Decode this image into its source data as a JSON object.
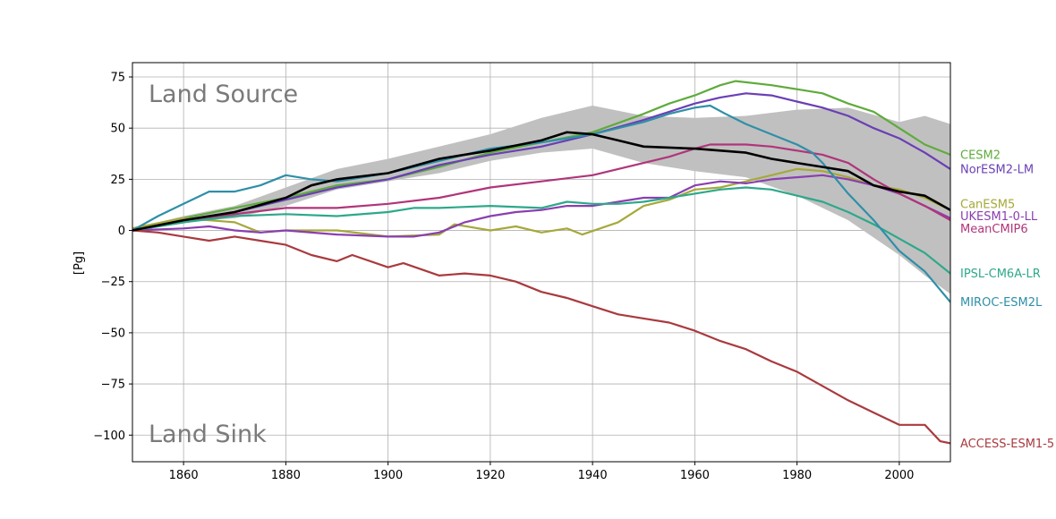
{
  "chart_data": {
    "type": "line",
    "title": "",
    "xlabel": "",
    "ylabel": "[Pg]",
    "xlim": [
      1850,
      2010
    ],
    "ylim": [
      -113,
      82
    ],
    "xticks": [
      1860,
      1880,
      1900,
      1920,
      1940,
      1960,
      1980,
      2000
    ],
    "yticks": [
      75,
      50,
      25,
      0,
      -25,
      -50,
      -75,
      -100
    ],
    "grid": true,
    "annotations": {
      "top": "Land Source",
      "bottom": "Land Sink"
    },
    "band": {
      "color": "#c0c0c0",
      "x": [
        1850,
        1860,
        1870,
        1880,
        1890,
        1900,
        1910,
        1920,
        1930,
        1940,
        1950,
        1960,
        1970,
        1980,
        1990,
        2000,
        2005,
        2010
      ],
      "upper": [
        1,
        7,
        12,
        21,
        30,
        35,
        41,
        47,
        55,
        61,
        56,
        55,
        56,
        59,
        60,
        53,
        56,
        52
      ],
      "lower": [
        0,
        4,
        6,
        12,
        20,
        24,
        28,
        34,
        38,
        40,
        33,
        29,
        26,
        17,
        5,
        -12,
        -22,
        -31
      ]
    },
    "series": [
      {
        "name": "CESM2",
        "color": "#5fab3c",
        "x": [
          1850,
          1860,
          1870,
          1880,
          1890,
          1900,
          1910,
          1920,
          1930,
          1940,
          1950,
          1955,
          1960,
          1965,
          1968,
          1975,
          1980,
          1985,
          1990,
          1995,
          2000,
          2005,
          2010
        ],
        "y": [
          1,
          6,
          11,
          16,
          22,
          25,
          31,
          38,
          43,
          48,
          57,
          62,
          66,
          71,
          73,
          71,
          69,
          67,
          62,
          58,
          50,
          42,
          37
        ]
      },
      {
        "name": "NorESM2-LM",
        "color": "#6a3fb5",
        "x": [
          1850,
          1860,
          1870,
          1880,
          1890,
          1900,
          1910,
          1920,
          1930,
          1940,
          1950,
          1955,
          1960,
          1965,
          1970,
          1975,
          1980,
          1985,
          1990,
          1995,
          2000,
          2005,
          2010
        ],
        "y": [
          0,
          5,
          9,
          15,
          21,
          25,
          32,
          37,
          41,
          47,
          54,
          58,
          62,
          65,
          67,
          66,
          63,
          60,
          56,
          50,
          45,
          38,
          30
        ]
      },
      {
        "name": "CanESM5",
        "color": "#a6a83a",
        "x": [
          1850,
          1860,
          1865,
          1870,
          1875,
          1880,
          1890,
          1900,
          1910,
          1913,
          1920,
          1925,
          1930,
          1935,
          1938,
          1945,
          1950,
          1955,
          1960,
          1965,
          1970,
          1975,
          1980,
          1985,
          1990,
          1995,
          2000,
          2005,
          2010
        ],
        "y": [
          1,
          6,
          5,
          4,
          -1,
          0,
          0,
          -3,
          -2,
          3,
          0,
          2,
          -1,
          1,
          -2,
          4,
          12,
          15,
          20,
          21,
          24,
          27,
          30,
          29,
          26,
          22,
          20,
          16,
          10
        ]
      },
      {
        "name": "UKESM1-0-LL",
        "color": "#8a3fb0",
        "x": [
          1850,
          1860,
          1865,
          1870,
          1875,
          1880,
          1890,
          1900,
          1905,
          1910,
          1915,
          1920,
          1925,
          1930,
          1935,
          1940,
          1945,
          1950,
          1955,
          1960,
          1965,
          1970,
          1975,
          1980,
          1985,
          1990,
          1995,
          2000,
          2005,
          2010
        ],
        "y": [
          0,
          1,
          2,
          0,
          -1,
          0,
          -2,
          -3,
          -3,
          -1,
          4,
          7,
          9,
          10,
          12,
          12,
          14,
          16,
          16,
          22,
          24,
          23,
          25,
          26,
          27,
          25,
          22,
          18,
          12,
          6
        ]
      },
      {
        "name": "MeanCMIP6",
        "color": "#b0357a",
        "x": [
          1850,
          1860,
          1870,
          1880,
          1890,
          1900,
          1910,
          1920,
          1930,
          1940,
          1950,
          1955,
          1960,
          1963,
          1970,
          1975,
          1980,
          1985,
          1990,
          1995,
          2000,
          2005,
          2010
        ],
        "y": [
          0,
          4,
          8,
          11,
          11,
          13,
          16,
          21,
          24,
          27,
          33,
          36,
          40,
          42,
          42,
          41,
          39,
          37,
          33,
          25,
          18,
          12,
          5
        ]
      },
      {
        "name": "IPSL-CM6A-LR",
        "color": "#2ea88a",
        "x": [
          1850,
          1855,
          1860,
          1870,
          1880,
          1890,
          1900,
          1905,
          1910,
          1920,
          1930,
          1935,
          1940,
          1945,
          1950,
          1955,
          1960,
          1965,
          1970,
          1975,
          1980,
          1985,
          1990,
          1995,
          2000,
          2005,
          2010
        ],
        "y": [
          0,
          2,
          4,
          7,
          8,
          7,
          9,
          11,
          11,
          12,
          11,
          14,
          13,
          13,
          14,
          16,
          18,
          20,
          21,
          20,
          17,
          14,
          9,
          3,
          -4,
          -11,
          -21
        ]
      },
      {
        "name": "MIROC-ESM2L",
        "color": "#2f8fa8",
        "x": [
          1850,
          1855,
          1860,
          1865,
          1870,
          1875,
          1880,
          1885,
          1890,
          1900,
          1910,
          1920,
          1930,
          1940,
          1950,
          1955,
          1960,
          1963,
          1966,
          1970,
          1975,
          1980,
          1983,
          1985,
          1990,
          1995,
          2000,
          2005,
          2010
        ],
        "y": [
          0,
          7,
          13,
          19,
          19,
          22,
          27,
          25,
          24,
          28,
          34,
          40,
          43,
          47,
          53,
          57,
          60,
          61,
          57,
          52,
          47,
          42,
          38,
          33,
          18,
          5,
          -10,
          -20,
          -35
        ]
      },
      {
        "name": "ACCESS-ESM1-5",
        "color": "#a93a3e",
        "x": [
          1850,
          1855,
          1860,
          1865,
          1870,
          1875,
          1880,
          1885,
          1890,
          1893,
          1900,
          1903,
          1910,
          1915,
          1920,
          1925,
          1930,
          1935,
          1940,
          1945,
          1950,
          1955,
          1960,
          1965,
          1970,
          1975,
          1980,
          1985,
          1990,
          1995,
          2000,
          2005,
          2008,
          2010
        ],
        "y": [
          0,
          -1,
          -3,
          -5,
          -3,
          -5,
          -7,
          -12,
          -15,
          -12,
          -18,
          -16,
          -22,
          -21,
          -22,
          -25,
          -30,
          -33,
          -37,
          -41,
          -43,
          -45,
          -49,
          -54,
          -58,
          -64,
          -69,
          -76,
          -83,
          -89,
          -95,
          -95,
          -103,
          -104
        ]
      },
      {
        "name": "",
        "color": "#000000",
        "emphasis": true,
        "x": [
          1850,
          1860,
          1870,
          1880,
          1885,
          1890,
          1900,
          1910,
          1920,
          1930,
          1935,
          1940,
          1945,
          1950,
          1960,
          1965,
          1970,
          1975,
          1980,
          1985,
          1990,
          1995,
          2000,
          2005,
          2010
        ],
        "y": [
          0,
          5,
          9,
          16,
          22,
          25,
          28,
          35,
          39,
          44,
          48,
          47,
          44,
          41,
          40,
          39,
          38,
          35,
          33,
          31,
          29,
          22,
          19,
          17,
          10
        ]
      }
    ],
    "legend": [
      {
        "name": "CESM2",
        "color": "#5fab3c",
        "y": 37
      },
      {
        "name": "NorESM2-LM",
        "color": "#6a3fb5",
        "y": 30
      },
      {
        "name": "CanESM5",
        "color": "#a6a83a",
        "y": 13
      },
      {
        "name": "UKESM1-0-LL",
        "color": "#8a3fb0",
        "y": 7
      },
      {
        "name": "MeanCMIP6",
        "color": "#b0357a",
        "y": 1
      },
      {
        "name": "IPSL-CM6A-LR",
        "color": "#2ea88a",
        "y": -21
      },
      {
        "name": "MIROC-ESM2L",
        "color": "#2f8fa8",
        "y": -35
      },
      {
        "name": "ACCESS-ESM1-5",
        "color": "#a93a3e",
        "y": -104
      }
    ]
  }
}
